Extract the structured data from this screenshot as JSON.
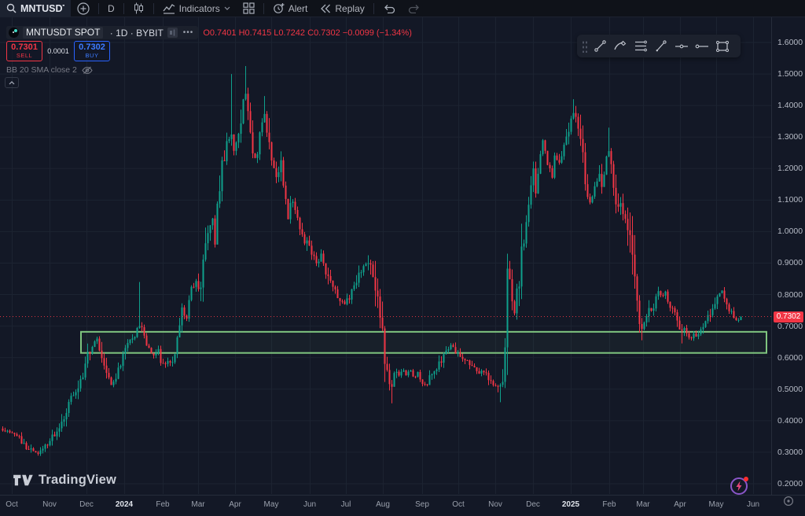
{
  "toolbar": {
    "symbol": "MNTUSDT",
    "timeframe": "D",
    "indicators_label": "Indicators",
    "alert_label": "Alert",
    "replay_label": "Replay"
  },
  "legend": {
    "title": "MNTUSDT SPOT",
    "sub": " · 1D · BYBIT",
    "more": "•••",
    "ohlc": {
      "o": "O",
      "ov": "0.7401",
      "h": "H",
      "hv": "0.7415",
      "l": "L",
      "lv": "0.7242",
      "c": "C",
      "cv": "0.7302",
      "chg": "−0.0099",
      "chg_pct": "(−1.34%)"
    }
  },
  "trade": {
    "sell_price": "0.7301",
    "sell_label": "SELL",
    "spread": "0.0001",
    "buy_price": "0.7302",
    "buy_label": "BUY"
  },
  "indicator": {
    "label": "BB 20 SMA close 2"
  },
  "watermark": {
    "text": "TradingView"
  },
  "price_axis": {
    "current_label": "0.7302",
    "ticks": [
      {
        "label": "1.6000",
        "price": 1.6
      },
      {
        "label": "1.5000",
        "price": 1.5
      },
      {
        "label": "1.4000",
        "price": 1.4
      },
      {
        "label": "1.3000",
        "price": 1.3
      },
      {
        "label": "1.2000",
        "price": 1.2
      },
      {
        "label": "1.1000",
        "price": 1.1
      },
      {
        "label": "1.0000",
        "price": 1.0
      },
      {
        "label": "0.9000",
        "price": 0.9
      },
      {
        "label": "0.8000",
        "price": 0.8
      },
      {
        "label": "0.7000",
        "price": 0.7
      },
      {
        "label": "0.6000",
        "price": 0.6
      },
      {
        "label": "0.5000",
        "price": 0.5
      },
      {
        "label": "0.4000",
        "price": 0.4
      },
      {
        "label": "0.3000",
        "price": 0.3
      },
      {
        "label": "0.2000",
        "price": 0.2
      }
    ]
  },
  "time_axis": {
    "labels": [
      {
        "text": "Oct",
        "x": 15
      },
      {
        "text": "Nov",
        "x": 63
      },
      {
        "text": "Dec",
        "x": 110
      },
      {
        "text": "2024",
        "x": 158,
        "year": true
      },
      {
        "text": "Feb",
        "x": 207
      },
      {
        "text": "Mar",
        "x": 252
      },
      {
        "text": "Apr",
        "x": 299
      },
      {
        "text": "May",
        "x": 345
      },
      {
        "text": "Jun",
        "x": 394
      },
      {
        "text": "Jul",
        "x": 440
      },
      {
        "text": "Aug",
        "x": 487
      },
      {
        "text": "Sep",
        "x": 537
      },
      {
        "text": "Oct",
        "x": 583
      },
      {
        "text": "Nov",
        "x": 630
      },
      {
        "text": "Dec",
        "x": 678
      },
      {
        "text": "2025",
        "x": 726,
        "year": true
      },
      {
        "text": "Feb",
        "x": 775
      },
      {
        "text": "Mar",
        "x": 818
      },
      {
        "text": "Apr",
        "x": 865
      },
      {
        "text": "May",
        "x": 911
      },
      {
        "text": "Jun",
        "x": 958
      }
    ]
  },
  "chart_data": {
    "type": "candlestick",
    "symbol": "MNTUSDT",
    "exchange": "BYBIT",
    "timeframe": "1D",
    "title": "MNTUSDT SPOT · 1D · BYBIT",
    "last_bar": {
      "open": 0.7401,
      "high": 0.7415,
      "low": 0.7242,
      "close": 0.7302,
      "change": -0.0099,
      "change_pct": -1.34
    },
    "current_price": 0.7302,
    "y_range": [
      0.2,
      1.6
    ],
    "grid": true,
    "colors": {
      "up": "#0fa08c",
      "down": "#f23645",
      "current_line": "#f23645",
      "zone": "#7fc57f",
      "grid": "#1c2331"
    },
    "zone_rectangle": {
      "price_top": 0.682,
      "price_bottom": 0.615,
      "x_start": 103,
      "x_end": 975
    },
    "price_path": [
      [
        2,
        0.375
      ],
      [
        10,
        0.365
      ],
      [
        18,
        0.355
      ],
      [
        25,
        0.34
      ],
      [
        32,
        0.32
      ],
      [
        40,
        0.305
      ],
      [
        47,
        0.295
      ],
      [
        53,
        0.31
      ],
      [
        60,
        0.33
      ],
      [
        67,
        0.355
      ],
      [
        73,
        0.375
      ],
      [
        80,
        0.41
      ],
      [
        85,
        0.445
      ],
      [
        90,
        0.47
      ],
      [
        97,
        0.5
      ],
      [
        103,
        0.52
      ],
      [
        110,
        0.6
      ],
      [
        118,
        0.65
      ],
      [
        123,
        0.66
      ],
      [
        130,
        0.58
      ],
      [
        137,
        0.53
      ],
      [
        143,
        0.51
      ],
      [
        150,
        0.555
      ],
      [
        157,
        0.62
      ],
      [
        165,
        0.66
      ],
      [
        171,
        0.67
      ],
      [
        176,
        0.71
      ],
      [
        181,
        0.68
      ],
      [
        187,
        0.63
      ],
      [
        194,
        0.61
      ],
      [
        200,
        0.63
      ],
      [
        206,
        0.57
      ],
      [
        212,
        0.59
      ],
      [
        218,
        0.575
      ],
      [
        225,
        0.65
      ],
      [
        231,
        0.76
      ],
      [
        237,
        0.74
      ],
      [
        243,
        0.81
      ],
      [
        249,
        0.85
      ],
      [
        254,
        0.8
      ],
      [
        259,
        0.92
      ],
      [
        264,
        1.0
      ],
      [
        269,
        1.06
      ],
      [
        273,
        0.98
      ],
      [
        278,
        1.12
      ],
      [
        284,
        1.22
      ],
      [
        289,
        1.28
      ],
      [
        293,
        1.32
      ],
      [
        298,
        1.24
      ],
      [
        303,
        1.33
      ],
      [
        308,
        1.4
      ],
      [
        313,
        1.46
      ],
      [
        317,
        1.33
      ],
      [
        321,
        1.26
      ],
      [
        326,
        1.22
      ],
      [
        331,
        1.33
      ],
      [
        336,
        1.38
      ],
      [
        341,
        1.28
      ],
      [
        347,
        1.2
      ],
      [
        352,
        1.16
      ],
      [
        357,
        1.22
      ],
      [
        362,
        1.12
      ],
      [
        366,
        1.04
      ],
      [
        371,
        1.1
      ],
      [
        376,
        1.06
      ],
      [
        381,
        1.01
      ],
      [
        387,
        0.97
      ],
      [
        392,
        0.95
      ],
      [
        398,
        0.92
      ],
      [
        403,
        0.89
      ],
      [
        408,
        0.92
      ],
      [
        413,
        0.87
      ],
      [
        418,
        0.85
      ],
      [
        424,
        0.82
      ],
      [
        430,
        0.79
      ],
      [
        436,
        0.77
      ],
      [
        441,
        0.78
      ],
      [
        447,
        0.81
      ],
      [
        453,
        0.85
      ],
      [
        459,
        0.88
      ],
      [
        464,
        0.9
      ],
      [
        468,
        0.91
      ],
      [
        473,
        0.86
      ],
      [
        478,
        0.79
      ],
      [
        483,
        0.72
      ],
      [
        488,
        0.62
      ],
      [
        493,
        0.53
      ],
      [
        497,
        0.5
      ],
      [
        502,
        0.56
      ],
      [
        507,
        0.54
      ],
      [
        512,
        0.56
      ],
      [
        517,
        0.54
      ],
      [
        522,
        0.56
      ],
      [
        527,
        0.53
      ],
      [
        532,
        0.55
      ],
      [
        537,
        0.52
      ],
      [
        542,
        0.51
      ],
      [
        547,
        0.54
      ],
      [
        552,
        0.56
      ],
      [
        557,
        0.58
      ],
      [
        562,
        0.6
      ],
      [
        567,
        0.62
      ],
      [
        572,
        0.64
      ],
      [
        577,
        0.63
      ],
      [
        582,
        0.61
      ],
      [
        587,
        0.59
      ],
      [
        592,
        0.6
      ],
      [
        597,
        0.58
      ],
      [
        602,
        0.57
      ],
      [
        607,
        0.55
      ],
      [
        612,
        0.56
      ],
      [
        617,
        0.55
      ],
      [
        622,
        0.53
      ],
      [
        627,
        0.52
      ],
      [
        632,
        0.5
      ],
      [
        637,
        0.53
      ],
      [
        641,
        0.56
      ],
      [
        645,
        0.88
      ],
      [
        650,
        0.78
      ],
      [
        654,
        0.74
      ],
      [
        658,
        0.82
      ],
      [
        662,
        0.9
      ],
      [
        666,
        1.0
      ],
      [
        670,
        1.08
      ],
      [
        674,
        1.15
      ],
      [
        678,
        1.2
      ],
      [
        682,
        1.12
      ],
      [
        686,
        1.22
      ],
      [
        690,
        1.3
      ],
      [
        694,
        1.24
      ],
      [
        698,
        1.2
      ],
      [
        702,
        1.17
      ],
      [
        706,
        1.26
      ],
      [
        710,
        1.22
      ],
      [
        714,
        1.24
      ],
      [
        718,
        1.28
      ],
      [
        722,
        1.31
      ],
      [
        726,
        1.35
      ],
      [
        730,
        1.39
      ],
      [
        734,
        1.34
      ],
      [
        738,
        1.27
      ],
      [
        742,
        1.2
      ],
      [
        746,
        1.14
      ],
      [
        750,
        1.1
      ],
      [
        754,
        1.12
      ],
      [
        758,
        1.16
      ],
      [
        762,
        1.18
      ],
      [
        766,
        1.13
      ],
      [
        770,
        1.22
      ],
      [
        773,
        1.28
      ],
      [
        777,
        1.2
      ],
      [
        781,
        1.13
      ],
      [
        785,
        1.07
      ],
      [
        789,
        1.1
      ],
      [
        793,
        1.05
      ],
      [
        797,
        1.01
      ],
      [
        801,
        0.95
      ],
      [
        805,
        0.88
      ],
      [
        809,
        0.79
      ],
      [
        813,
        0.72
      ],
      [
        817,
        0.69
      ],
      [
        821,
        0.73
      ],
      [
        825,
        0.76
      ],
      [
        829,
        0.75
      ],
      [
        833,
        0.78
      ],
      [
        838,
        0.82
      ],
      [
        842,
        0.79
      ],
      [
        846,
        0.81
      ],
      [
        850,
        0.78
      ],
      [
        854,
        0.76
      ],
      [
        858,
        0.73
      ],
      [
        862,
        0.71
      ],
      [
        866,
        0.69
      ],
      [
        870,
        0.7
      ],
      [
        874,
        0.67
      ],
      [
        878,
        0.66
      ],
      [
        882,
        0.68
      ],
      [
        886,
        0.66
      ],
      [
        890,
        0.69
      ],
      [
        894,
        0.71
      ],
      [
        898,
        0.72
      ],
      [
        902,
        0.74
      ],
      [
        906,
        0.76
      ],
      [
        910,
        0.78
      ],
      [
        914,
        0.8
      ],
      [
        918,
        0.81
      ],
      [
        922,
        0.79
      ],
      [
        926,
        0.76
      ],
      [
        930,
        0.74
      ],
      [
        934,
        0.73
      ],
      [
        938,
        0.72
      ],
      [
        943,
        0.731
      ]
    ],
    "wick_spikes": [
      [
        176,
        0.84,
        "h"
      ],
      [
        293,
        1.5,
        "h"
      ],
      [
        313,
        1.525,
        "h"
      ],
      [
        336,
        1.43,
        "h"
      ],
      [
        468,
        0.925,
        "h"
      ],
      [
        497,
        0.455,
        "l"
      ],
      [
        634,
        0.49,
        "l"
      ],
      [
        645,
        0.93,
        "h"
      ],
      [
        645,
        0.545,
        "l"
      ],
      [
        730,
        1.42,
        "h"
      ],
      [
        773,
        1.33,
        "h"
      ],
      [
        817,
        0.655,
        "l"
      ],
      [
        866,
        0.645,
        "l"
      ]
    ]
  }
}
